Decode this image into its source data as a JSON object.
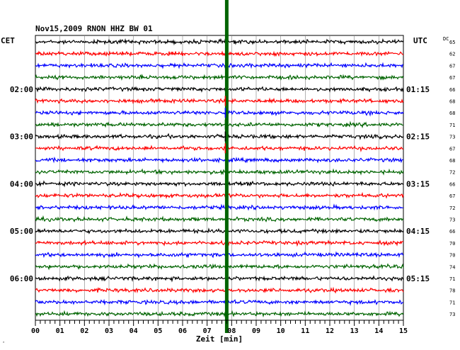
{
  "chart_data": {
    "type": "line",
    "title": "Nov15,2009   RNON HHZ BW 01",
    "left_label": "CET",
    "right_label": "UTC",
    "dc_label": "DC",
    "xlabel": "Zeit [min]",
    "corner_mark": "ˆ",
    "xlim": [
      0,
      15
    ],
    "x_ticks": [
      "00",
      "01",
      "02",
      "03",
      "04",
      "05",
      "06",
      "07",
      "08",
      "09",
      "10",
      "11",
      "12",
      "13",
      "14",
      "15"
    ],
    "grid": true,
    "line_colors": [
      "#000000",
      "#ff0000",
      "#0000ff",
      "#006400"
    ],
    "trace_count": 24,
    "left_time_labels": [
      {
        "row": 4,
        "text": "02:00"
      },
      {
        "row": 8,
        "text": "03:00"
      },
      {
        "row": 12,
        "text": "04:00"
      },
      {
        "row": 16,
        "text": "05:00"
      },
      {
        "row": 20,
        "text": "06:00"
      }
    ],
    "right_time_labels": [
      {
        "row": 4,
        "text": "01:15"
      },
      {
        "row": 8,
        "text": "02:15"
      },
      {
        "row": 12,
        "text": "03:15"
      },
      {
        "row": 16,
        "text": "04:15"
      },
      {
        "row": 20,
        "text": "05:15"
      }
    ],
    "dc_values": [
      "65",
      "62",
      "67",
      "67",
      "66",
      "68",
      "68",
      "71",
      "73",
      "67",
      "68",
      "72",
      "66",
      "67",
      "72",
      "73",
      "66",
      "70",
      "70",
      "74",
      "71",
      "78",
      "71",
      "73"
    ],
    "event": {
      "minute": 7.8,
      "color": "#006400"
    }
  }
}
